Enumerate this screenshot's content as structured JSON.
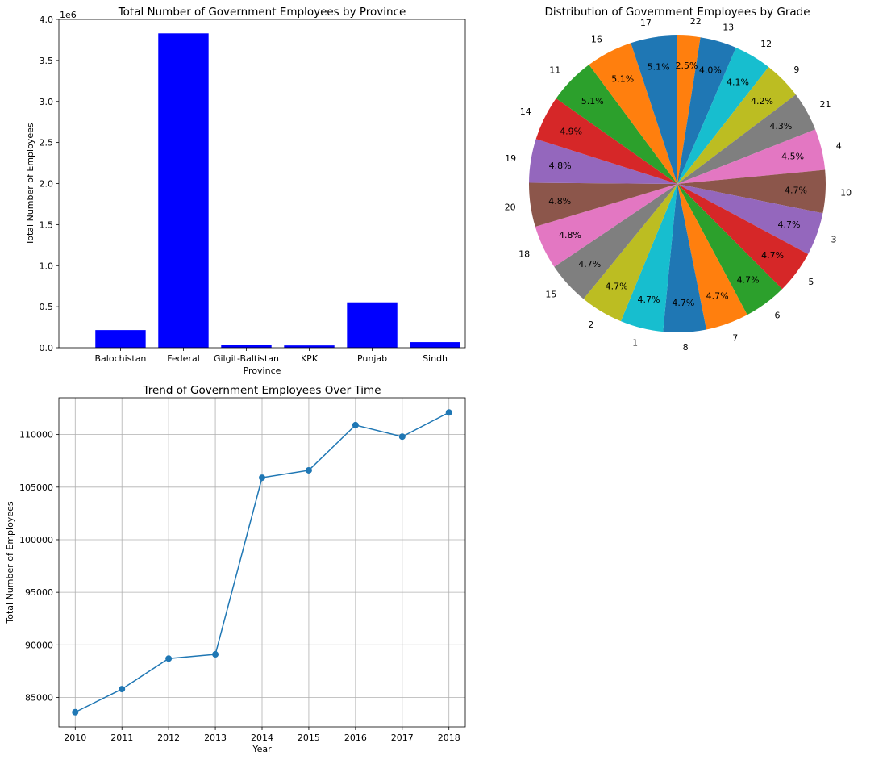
{
  "chart_data": [
    {
      "type": "bar",
      "title": "Total Number of Government Employees by Province",
      "xlabel": "Province",
      "ylabel": "Total Number of Employees",
      "offset_label": "1e6",
      "categories": [
        "Balochistan",
        "Federal",
        "Gilgit-Baltistan",
        "KPK",
        "Punjab",
        "Sindh"
      ],
      "values": [
        215000,
        3830000,
        37000,
        28000,
        553000,
        68000
      ],
      "ylim": [
        0,
        4.0
      ],
      "yticks": [
        "0.0",
        "0.5",
        "1.0",
        "1.5",
        "2.0",
        "2.5",
        "3.0",
        "3.5",
        "4.0"
      ],
      "color": "#0000ff",
      "grid": false
    },
    {
      "type": "pie",
      "title": "Distribution of Government Employees by Grade",
      "labels": [
        "22",
        "13",
        "12",
        "9",
        "21",
        "4",
        "10",
        "3",
        "5",
        "6",
        "7",
        "8",
        "1",
        "2",
        "15",
        "18",
        "20",
        "19",
        "14",
        "11",
        "16",
        "17"
      ],
      "values": [
        2.5,
        4.0,
        4.1,
        4.2,
        4.3,
        4.5,
        4.7,
        4.7,
        4.7,
        4.7,
        4.7,
        4.7,
        4.7,
        4.7,
        4.7,
        4.8,
        4.8,
        4.8,
        4.9,
        5.1,
        5.1,
        5.1
      ],
      "pct_labels": [
        "2.5%",
        "4.0%",
        "4.1%",
        "4.2%",
        "4.3%",
        "4.5%",
        "4.7%",
        "4.7%",
        "4.7%",
        "4.7%",
        "4.7%",
        "4.7%",
        "4.7%",
        "4.7%",
        "4.7%",
        "4.8%",
        "4.8%",
        "4.8%",
        "4.9%",
        "5.1%",
        "5.1%",
        "5.1%"
      ],
      "colors": [
        "#ff7f0e",
        "#1f77b4",
        "#17becf",
        "#bcbd22",
        "#7f7f7f",
        "#e377c2",
        "#8c564b",
        "#9467bd",
        "#d62728",
        "#2ca02c",
        "#ff7f0e",
        "#1f77b4",
        "#17becf",
        "#bcbd22",
        "#7f7f7f",
        "#e377c2",
        "#8c564b",
        "#9467bd",
        "#d62728",
        "#2ca02c",
        "#ff7f0e",
        "#1f77b4"
      ],
      "start_angle_deg": 90,
      "direction": "clockwise"
    },
    {
      "type": "line",
      "title": "Trend of Government Employees Over Time",
      "xlabel": "Year",
      "ylabel": "Total Number of Employees",
      "x": [
        2010,
        2011,
        2012,
        2013,
        2014,
        2015,
        2016,
        2017,
        2018
      ],
      "y": [
        83600,
        85800,
        88700,
        89100,
        105900,
        106600,
        110900,
        109800,
        112100
      ],
      "yticks": [
        85000,
        90000,
        95000,
        100000,
        105000,
        110000
      ],
      "xlim": [
        2009.65,
        2018.35
      ],
      "ylim": [
        82200,
        113500
      ],
      "color": "#1f77b4",
      "marker": "circle",
      "grid": true
    }
  ]
}
